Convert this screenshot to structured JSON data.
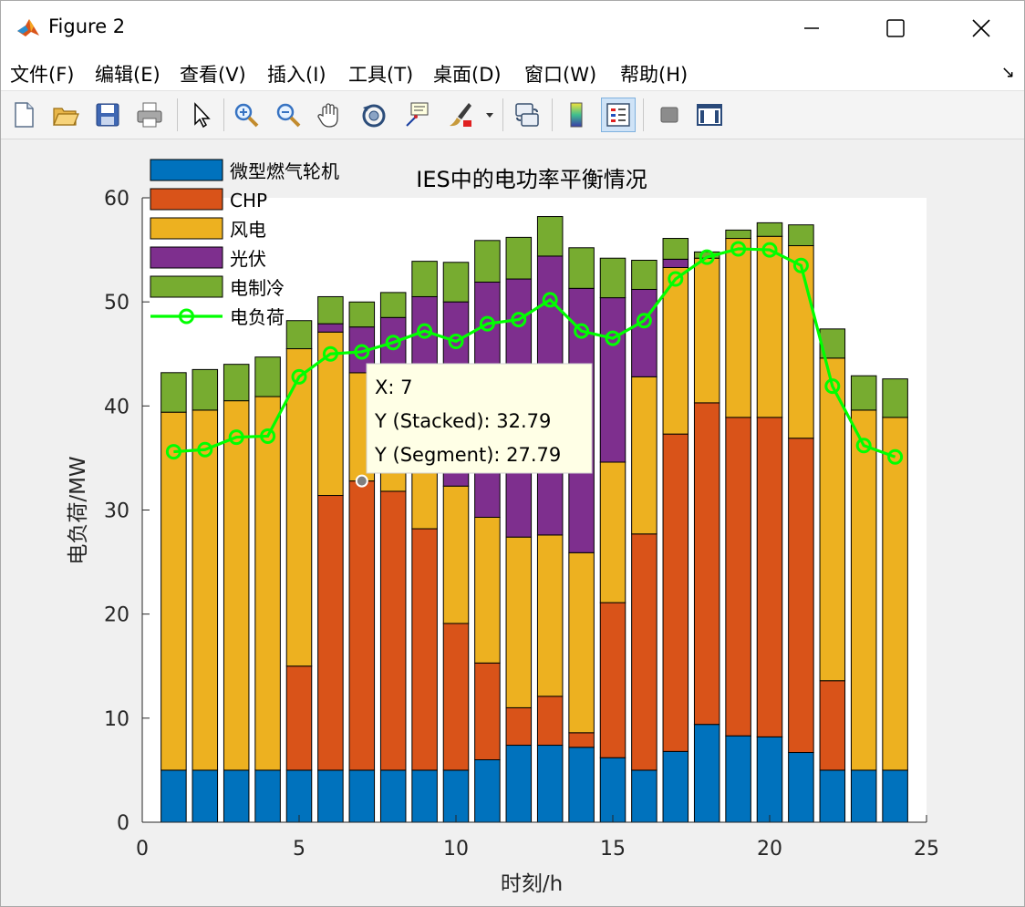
{
  "window": {
    "title": "Figure 2"
  },
  "menu": [
    "文件(F)",
    "编辑(E)",
    "查看(V)",
    "插入(I)",
    "工具(T)",
    "桌面(D)",
    "窗口(W)",
    "帮助(H)"
  ],
  "toolbar_icons": [
    "new-figure-icon",
    "open-file-icon",
    "save-icon",
    "print-icon",
    "pointer-icon",
    "zoom-in-icon",
    "zoom-out-icon",
    "pan-icon",
    "rotate-3d-icon",
    "data-cursor-icon",
    "brush-icon",
    "link-plot-icon",
    "colorbar-icon",
    "legend-icon",
    "hide-plot-tools-icon",
    "show-plot-tools-icon"
  ],
  "colors": {
    "micro_turbine": "#0072BD",
    "chp": "#D95319",
    "wind": "#EDB120",
    "pv": "#7E2F8E",
    "electric_chiller": "#77AC30",
    "load_line": "#00FF00",
    "datatip_bg": "#FFFFE6"
  },
  "chart_data": {
    "type": "bar",
    "stacked": true,
    "title": "IES中的电功率平衡情况",
    "xlabel": "时刻/h",
    "ylabel": "电负荷/MW",
    "xlim": [
      0,
      25
    ],
    "ylim": [
      0,
      60
    ],
    "xticks": [
      0,
      5,
      10,
      15,
      20,
      25
    ],
    "yticks": [
      0,
      10,
      20,
      30,
      40,
      50,
      60
    ],
    "legend_position": "top-left",
    "x": [
      1,
      2,
      3,
      4,
      5,
      6,
      7,
      8,
      9,
      10,
      11,
      12,
      13,
      14,
      15,
      16,
      17,
      18,
      19,
      20,
      21,
      22,
      23,
      24
    ],
    "series": [
      {
        "name": "微型燃气轮机",
        "values": [
          5,
          5,
          5,
          5,
          5,
          5,
          5,
          5,
          5,
          5,
          6,
          7.4,
          7.4,
          7.2,
          6.2,
          5,
          6.8,
          9.4,
          8.3,
          8.2,
          6.7,
          5,
          5,
          5
        ]
      },
      {
        "name": "CHP",
        "values": [
          0,
          0,
          0,
          0,
          10,
          26.4,
          27.79,
          26.8,
          23.2,
          14.1,
          9.3,
          3.6,
          4.7,
          1.4,
          14.9,
          22.7,
          30.5,
          30.9,
          30.6,
          30.7,
          30.2,
          8.6,
          0,
          0
        ]
      },
      {
        "name": "风电",
        "values": [
          34.4,
          34.6,
          35.5,
          35.9,
          30.5,
          15.7,
          10.4,
          11.7,
          14.4,
          13.2,
          14,
          16.4,
          15.5,
          17.3,
          13.5,
          15.1,
          16,
          13.9,
          17.2,
          17.4,
          18.5,
          31,
          34.6,
          33.9
        ]
      },
      {
        "name": "光伏",
        "values": [
          0,
          0,
          0,
          0,
          0,
          0.8,
          4.4,
          5,
          7.9,
          17.7,
          22.6,
          24.8,
          26.8,
          25.4,
          15.8,
          8.4,
          0.8,
          0,
          0,
          0,
          0,
          0,
          0,
          0
        ]
      },
      {
        "name": "电制冷",
        "values": [
          3.8,
          3.9,
          3.5,
          3.8,
          2.7,
          2.6,
          2.4,
          2.4,
          3.4,
          3.8,
          4,
          4,
          3.8,
          3.9,
          3.8,
          2.8,
          2,
          0.6,
          0.8,
          1.3,
          2,
          2.8,
          3.3,
          3.7
        ]
      }
    ],
    "line": {
      "name": "电负荷",
      "values": [
        35.6,
        35.8,
        37,
        37.1,
        42.8,
        45,
        45.2,
        46.1,
        47.2,
        46.2,
        47.9,
        48.3,
        50.2,
        47.2,
        46.5,
        48.2,
        52.2,
        54.3,
        55.1,
        55,
        53.5,
        41.9,
        36.2,
        35.1
      ]
    },
    "datatip": {
      "x": 7,
      "y_stacked": 32.79,
      "lines": [
        "X: 7",
        "Y (Stacked): 32.79",
        "Y (Segment): 27.79"
      ]
    }
  }
}
